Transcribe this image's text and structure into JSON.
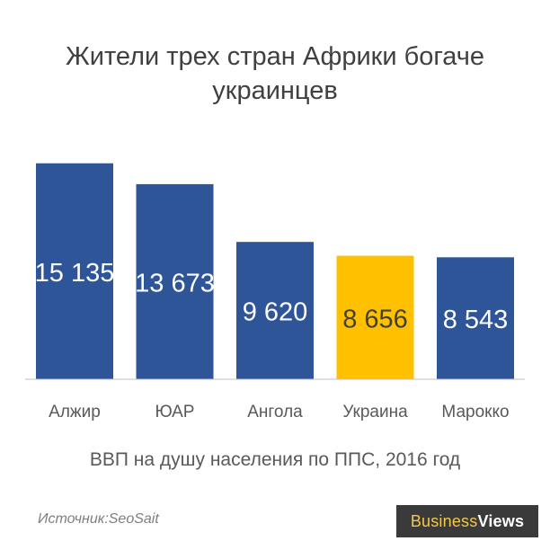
{
  "chart_data": {
    "type": "bar",
    "title_lines": [
      "Жители трех стран Африки богаче",
      "украинцев"
    ],
    "subtitle": "ВВП на душу населения по ППС, 2016 год",
    "categories": [
      "Алжир",
      "ЮАР",
      "Ангола",
      "Украина",
      "Марокко"
    ],
    "values": [
      15135,
      13673,
      9620,
      8656,
      8543
    ],
    "value_labels": [
      "15 135",
      "13 673",
      "9 620",
      "8 656",
      "8 543"
    ],
    "ylim": [
      0,
      16500
    ],
    "grid": false,
    "legend": "none",
    "colors": {
      "default": "#2e5597",
      "highlight": "#ffc000",
      "highlight_category": "Украина",
      "label_on_default": "#ffffff",
      "label_on_highlight": "#404040",
      "axis": "#bfbfbf"
    }
  },
  "footer": {
    "source": "Источник:SeoSait",
    "brand_part1": "Business",
    "brand_part2": "Views"
  }
}
